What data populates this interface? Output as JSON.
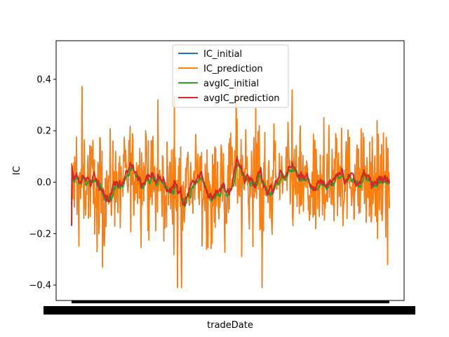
{
  "chart_data": {
    "type": "line",
    "xlabel": "tradeDate",
    "ylabel": "IC",
    "ylim": [
      -0.46,
      0.55
    ],
    "yticks": [
      0.4,
      0.2,
      0.0,
      -0.2,
      -0.4
    ],
    "ytick_labels": [
      "0.4",
      "0.2",
      "0.0",
      "−0.2",
      "−0.4"
    ],
    "x_tick_labels": "dense overlapping date labels (illegible)",
    "legend_placement": "top-center",
    "grid": false,
    "n_points": 700,
    "series": [
      {
        "name": "IC_initial",
        "color": "#1f77b4",
        "style": "noisy",
        "amplitude": 0.16,
        "min": -0.41,
        "max": 0.52
      },
      {
        "name": "IC_prediction",
        "color": "#ff7f0e",
        "style": "noisy",
        "amplitude": 0.16,
        "min": -0.41,
        "max": 0.52
      },
      {
        "name": "avgIC_initial",
        "color": "#2ca02c",
        "style": "smooth",
        "range": [
          -0.17,
          0.08
        ]
      },
      {
        "name": "avgIC_prediction",
        "color": "#d62728",
        "style": "smooth",
        "range": [
          -0.17,
          0.08
        ]
      }
    ]
  }
}
